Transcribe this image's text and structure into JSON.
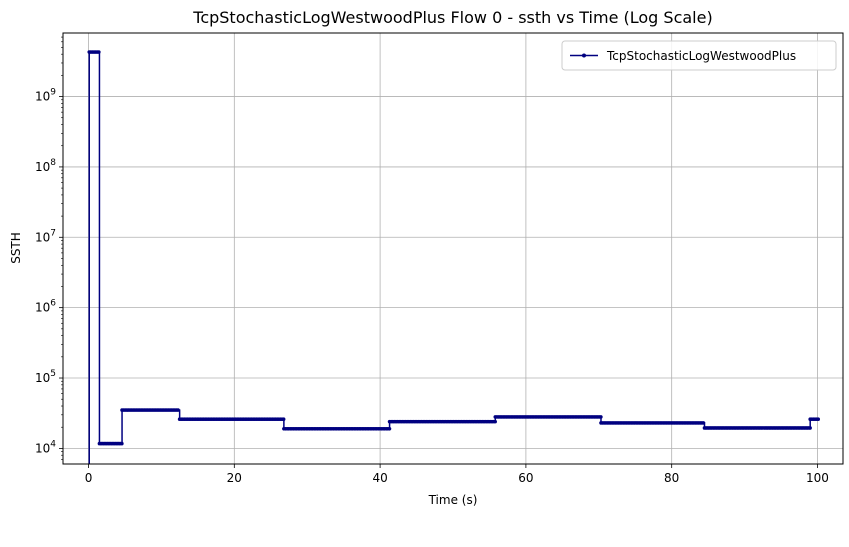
{
  "chart_data": {
    "type": "line",
    "title": "TcpStochasticLogWestwoodPlus Flow 0 - ssth vs Time (Log Scale)",
    "xlabel": "Time (s)",
    "ylabel": "SSTH",
    "xlim": [
      -3.5,
      103.5
    ],
    "ylim": [
      6000,
      8000000000
    ],
    "yscale": "log",
    "grid": true,
    "legend_loc": "upper right",
    "x_ticks": [
      0,
      20,
      40,
      60,
      80,
      100
    ],
    "y_ticks": [
      10000,
      100000,
      1000000,
      10000000,
      100000000,
      1000000000
    ],
    "y_tick_labels": [
      {
        "base": "10",
        "exp": "4"
      },
      {
        "base": "10",
        "exp": "5"
      },
      {
        "base": "10",
        "exp": "6"
      },
      {
        "base": "10",
        "exp": "7"
      },
      {
        "base": "10",
        "exp": "8"
      },
      {
        "base": "10",
        "exp": "9"
      }
    ],
    "series": [
      {
        "name": "TcpStochasticLogWestwoodPlus",
        "color": "#000080",
        "marker": "dot",
        "drawstyle": "steps-post",
        "x": [
          0,
          0.1,
          1.5,
          4.6,
          12.5,
          26.8,
          41.3,
          55.8,
          70.3,
          84.5,
          99.0,
          100.1
        ],
        "y": [
          5000,
          4290000000,
          11700,
          35000,
          26000,
          19000,
          24000,
          28000,
          23000,
          19500,
          26000,
          26000
        ]
      }
    ]
  }
}
